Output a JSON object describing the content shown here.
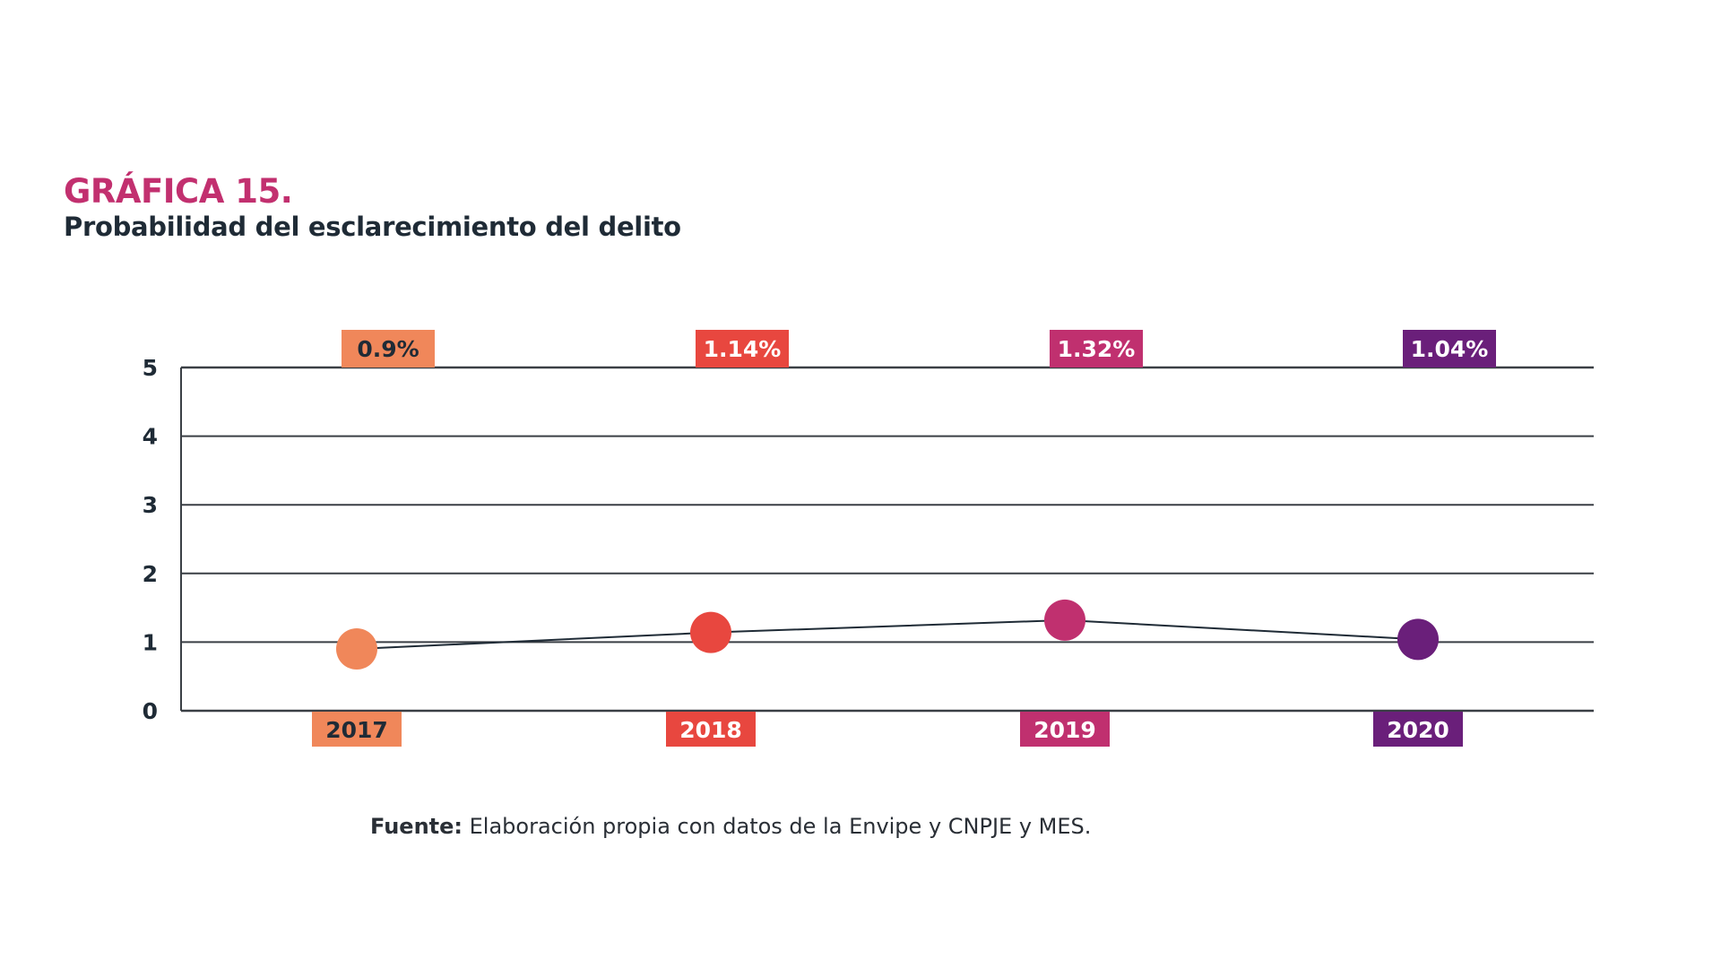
{
  "chart_data": {
    "type": "line",
    "title": "GRÁFICA 15.",
    "subtitle": "Probabilidad del esclarecimiento del delito",
    "categories": [
      "2017",
      "2018",
      "2019",
      "2020"
    ],
    "values": [
      0.9,
      1.14,
      1.32,
      1.04
    ],
    "data_labels": [
      "0.9%",
      "1.14%",
      "1.32%",
      "1.04%"
    ],
    "point_colors": [
      "#f0875a",
      "#e8473f",
      "#c0306f",
      "#6a1f7a"
    ],
    "label_text_colors": [
      "#1f2b36",
      "#ffffff",
      "#ffffff",
      "#ffffff"
    ],
    "xlabel": "",
    "ylabel": "",
    "ylim": [
      0,
      5
    ],
    "yticks": [
      0,
      1,
      2,
      3,
      4,
      5
    ],
    "grid": true,
    "line_color": "#1f2b36"
  },
  "source": {
    "label": "Fuente:",
    "text": " Elaboración propia con datos de la Envipe y CNPJE y MES."
  }
}
